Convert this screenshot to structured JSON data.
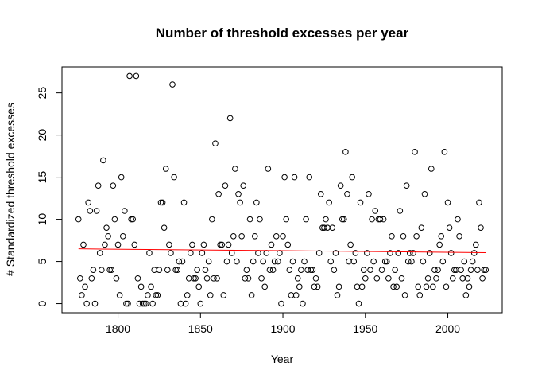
{
  "chart_data": {
    "type": "scatter",
    "title": "Number of threshold excesses per year",
    "x_label": "Year",
    "y_label": "# Standardized threshold excesses",
    "xlim": [
      1766,
      2033
    ],
    "xticks": [
      1800,
      1850,
      1900,
      1950,
      2000
    ],
    "ylim": [
      -1.08,
      28.08
    ],
    "yticks": [
      0,
      5,
      10,
      15,
      20,
      25
    ],
    "series": [
      {
        "color": "#000000",
        "x": [
          1776,
          1777,
          1778,
          1779,
          1780,
          1781,
          1782,
          1783,
          1784,
          1785,
          1786,
          1787,
          1788,
          1789,
          1790,
          1791,
          1792,
          1793,
          1794,
          1795,
          1796,
          1797,
          1798,
          1799,
          1800,
          1801,
          1802,
          1803,
          1804,
          1805,
          1806,
          1807,
          1808,
          1809,
          1810,
          1811,
          1812,
          1813,
          1814,
          1815,
          1816,
          1817,
          1818,
          1819,
          1820,
          1821,
          1822,
          1823,
          1824,
          1825,
          1826,
          1827,
          1828,
          1829,
          1830,
          1831,
          1832,
          1833,
          1834,
          1835,
          1836,
          1837,
          1838,
          1839,
          1840,
          1841,
          1842,
          1843,
          1844,
          1845,
          1846,
          1847,
          1848,
          1849,
          1850,
          1851,
          1852,
          1853,
          1854,
          1855,
          1856,
          1857,
          1858,
          1859,
          1860,
          1861,
          1862,
          1863,
          1864,
          1865,
          1866,
          1867,
          1868,
          1869,
          1870,
          1871,
          1872,
          1873,
          1874,
          1875,
          1876,
          1877,
          1878,
          1879,
          1880,
          1881,
          1882,
          1883,
          1884,
          1885,
          1886,
          1887,
          1888,
          1889,
          1890,
          1891,
          1892,
          1893,
          1894,
          1895,
          1896,
          1897,
          1898,
          1899,
          1900,
          1901,
          1902,
          1903,
          1904,
          1905,
          1906,
          1907,
          1908,
          1909,
          1910,
          1911,
          1912,
          1913,
          1914,
          1915,
          1916,
          1917,
          1918,
          1919,
          1920,
          1921,
          1922,
          1923,
          1924,
          1925,
          1926,
          1927,
          1928,
          1929,
          1930,
          1931,
          1932,
          1933,
          1934,
          1935,
          1936,
          1937,
          1938,
          1939,
          1940,
          1941,
          1942,
          1943,
          1944,
          1945,
          1946,
          1947,
          1948,
          1949,
          1950,
          1951,
          1952,
          1953,
          1954,
          1955,
          1956,
          1957,
          1958,
          1959,
          1960,
          1961,
          1962,
          1963,
          1964,
          1965,
          1966,
          1967,
          1968,
          1969,
          1970,
          1971,
          1972,
          1973,
          1974,
          1975,
          1976,
          1977,
          1978,
          1979,
          1980,
          1981,
          1982,
          1983,
          1984,
          1985,
          1986,
          1987,
          1988,
          1989,
          1990,
          1991,
          1992,
          1993,
          1994,
          1995,
          1996,
          1997,
          1998,
          1999,
          2000,
          2001,
          2002,
          2003,
          2004,
          2005,
          2006,
          2007,
          2008,
          2009,
          2010,
          2011,
          2012,
          2013,
          2014,
          2015,
          2016,
          2017,
          2018,
          2019,
          2020,
          2021,
          2022,
          2023
        ],
        "values": [
          10,
          3,
          1,
          7,
          2,
          0,
          12,
          11,
          3,
          4,
          0,
          11,
          14,
          6,
          4,
          17,
          7,
          9,
          8,
          4,
          4,
          14,
          10,
          3,
          7,
          1,
          15,
          8,
          11,
          0,
          0,
          27,
          10,
          10,
          7,
          27,
          3,
          0,
          2,
          0,
          0,
          0,
          1,
          6,
          2,
          0,
          4,
          1,
          1,
          4,
          12,
          12,
          9,
          16,
          4,
          7,
          6,
          26,
          15,
          4,
          4,
          5,
          0,
          5,
          12,
          0,
          1,
          3,
          6,
          7,
          3,
          3,
          4,
          2,
          0,
          6,
          7,
          4,
          3,
          5,
          1,
          10,
          3,
          19,
          3,
          13,
          7,
          7,
          1,
          14,
          5,
          7,
          22,
          6,
          8,
          16,
          5,
          13,
          12,
          8,
          14,
          3,
          4,
          3,
          10,
          1,
          5,
          8,
          12,
          6,
          10,
          3,
          5,
          2,
          6,
          16,
          4,
          7,
          4,
          5,
          8,
          5,
          6,
          0,
          8,
          15,
          10,
          7,
          4,
          1,
          5,
          15,
          1,
          3,
          2,
          4,
          0,
          5,
          10,
          4,
          15,
          4,
          4,
          2,
          3,
          2,
          6,
          13,
          9,
          9,
          10,
          9,
          12,
          5,
          9,
          4,
          6,
          1,
          2,
          14,
          10,
          10,
          18,
          13,
          5,
          7,
          15,
          5,
          6,
          2,
          0,
          12,
          2,
          4,
          3,
          6,
          13,
          4,
          10,
          5,
          11,
          3,
          10,
          10,
          4,
          10,
          5,
          5,
          3,
          6,
          8,
          2,
          4,
          2,
          6,
          11,
          3,
          8,
          1,
          14,
          5,
          6,
          5,
          6,
          18,
          8,
          2,
          1,
          9,
          5,
          13,
          2,
          3,
          6,
          16,
          2,
          4,
          3,
          4,
          7,
          8,
          5,
          18,
          2,
          12,
          9,
          6,
          3,
          4,
          4,
          10,
          8,
          4,
          3,
          5,
          1,
          3,
          2,
          4,
          5,
          6,
          7,
          4,
          12,
          9,
          3,
          4,
          4
        ]
      },
      {
        "color": "#ff0000",
        "line": true,
        "x": [
          1776,
          2023
        ],
        "values": [
          6.5,
          6.05
        ]
      }
    ]
  }
}
